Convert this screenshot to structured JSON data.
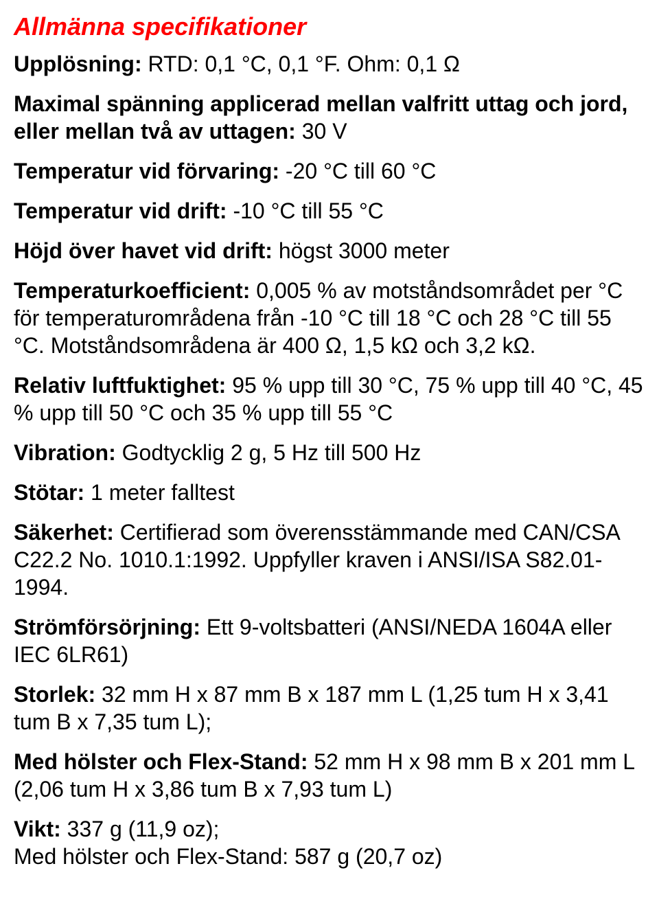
{
  "title": "Allmänna specifikationer",
  "items": [
    {
      "label": "Upplösning:",
      "text": " RTD: 0,1 °C, 0,1 °F. Ohm: 0,1 Ω"
    },
    {
      "label": "Maximal spänning applicerad mellan valfritt uttag och jord, eller mellan två av uttagen:",
      "text": " 30 V"
    },
    {
      "label": "Temperatur vid förvaring:",
      "text": " -20 °C till 60 °C"
    },
    {
      "label": "Temperatur vid drift:",
      "text": " -10 °C till 55 °C"
    },
    {
      "label": "Höjd över havet vid drift:",
      "text": " högst 3000 meter"
    },
    {
      "label": "Temperaturkoefficient:",
      "text": " 0,005 % av motståndsområdet per °C för temperaturområdena från -10 °C till 18 °C och 28 °C till 55 °C. Motståndsområdena är 400 Ω, 1,5 kΩ och 3,2 kΩ."
    },
    {
      "label": "Relativ luftfuktighet:",
      "text": " 95 % upp till 30 °C, 75 % upp till 40 °C, 45 % upp till 50 °C och 35 % upp till 55 °C"
    },
    {
      "label": "Vibration:",
      "text": " Godtycklig 2 g, 5 Hz till 500 Hz"
    },
    {
      "label": "Stötar:",
      "text": " 1 meter falltest"
    },
    {
      "label": "Säkerhet:",
      "text": " Certifierad som överensstämmande med CAN/CSA C22.2 No. 1010.1:1992. Uppfyller kraven i ANSI/ISA S82.01-1994."
    },
    {
      "label": "Strömförsörjning:",
      "text": " Ett 9-voltsbatteri (ANSI/NEDA 1604A eller IEC 6LR61)"
    },
    {
      "label": "Storlek:",
      "text": " 32 mm H x 87 mm B x 187 mm L (1,25 tum H x 3,41 tum B x 7,35 tum L);"
    },
    {
      "label": "Med hölster och Flex-Stand:",
      "text": " 52 mm H x 98 mm B x 201 mm L (2,06 tum H x 3,86 tum B x 7,93 tum L)"
    },
    {
      "label": "Vikt:",
      "text": " 337 g (11,9 oz);",
      "tail": "Med hölster och Flex-Stand: 587 g (20,7 oz)"
    }
  ]
}
